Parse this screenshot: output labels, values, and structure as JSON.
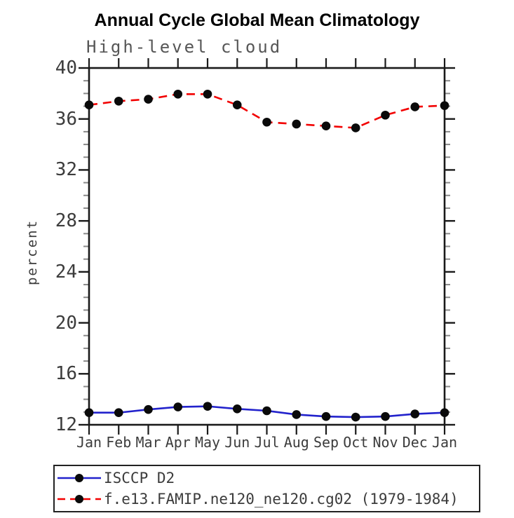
{
  "chart": {
    "title": "Annual Cycle Global Mean Climatology",
    "subtitle": "High-level cloud",
    "ylabel": "percent"
  },
  "chart_data": {
    "type": "line",
    "x": [
      "Jan",
      "Feb",
      "Mar",
      "Apr",
      "May",
      "Jun",
      "Jul",
      "Aug",
      "Sep",
      "Oct",
      "Nov",
      "Dec",
      "Jan"
    ],
    "ylim": [
      12,
      40
    ],
    "yticks": [
      12,
      16,
      20,
      24,
      28,
      32,
      36,
      40
    ],
    "minor_tick_step": 1,
    "grid": false,
    "legend_position": "bottom-left-box",
    "axis_color": "#1a1a1a",
    "minor_tick_color": "#8a8a8a",
    "marker_color": "#0a0a0a",
    "series": [
      {
        "name": "ISCCP D2",
        "color": "#2222cc",
        "style": "solid",
        "marker": "black-dot",
        "values": [
          12.95,
          12.95,
          13.2,
          13.4,
          13.45,
          13.25,
          13.1,
          12.8,
          12.65,
          12.6,
          12.65,
          12.85,
          12.95
        ]
      },
      {
        "name": "f.e13.FAMIP.ne120_ne120.cg02 (1979-1984)",
        "color": "#f20000",
        "style": "dashed",
        "marker": "black-dot",
        "values": [
          37.1,
          37.4,
          37.55,
          37.95,
          37.95,
          37.1,
          35.75,
          35.6,
          35.45,
          35.3,
          36.3,
          36.95,
          37.05
        ]
      }
    ]
  }
}
